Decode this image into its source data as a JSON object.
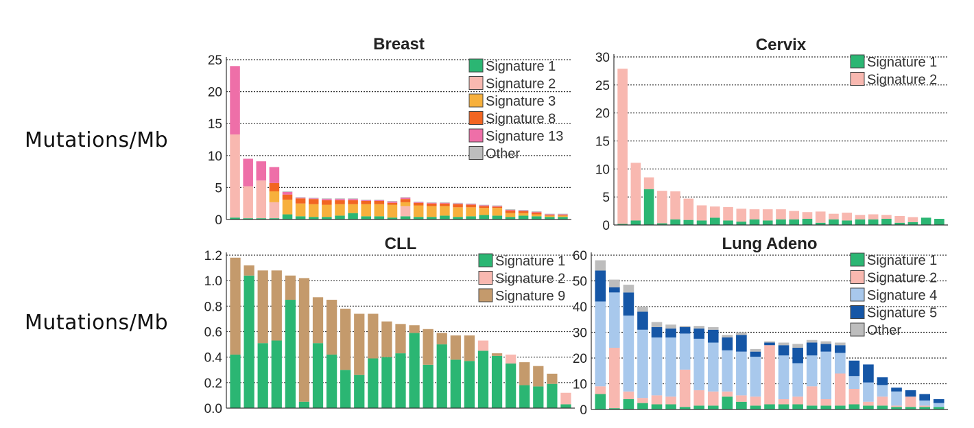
{
  "row_labels": [
    "Mutations/Mb",
    "Mutations/Mb"
  ],
  "colors": {
    "Signature 1": "#2bb673",
    "Signature 2": "#f8b8b0",
    "Signature 3": "#f7b03c",
    "Signature 8": "#f26522",
    "Signature 13": "#ee6fa8",
    "Signature 9": "#c49a6c",
    "Signature 4": "#a8c8ec",
    "Signature 5": "#1556a6",
    "Other": "#bdbdbd"
  },
  "chart_data": [
    {
      "type": "bar",
      "stacked": true,
      "title": "Breast",
      "ylabel": "Mutations/Mb",
      "ylim": [
        0,
        25
      ],
      "yticks": [
        "0",
        "5",
        "10",
        "15",
        "20",
        "25"
      ],
      "grid": true,
      "legend_position": "top-right",
      "legend": [
        "Signature 1",
        "Signature 2",
        "Signature 3",
        "Signature 8",
        "Signature 13",
        "Other"
      ],
      "series": [
        {
          "name": "Signature 1",
          "values": [
            0.3,
            0.2,
            0.2,
            0.2,
            0.8,
            0.5,
            0.4,
            0.4,
            0.6,
            1.0,
            0.5,
            0.5,
            0.3,
            0.5,
            0.4,
            0.4,
            0.6,
            0.4,
            0.5,
            0.7,
            0.6,
            0.4,
            0.6,
            0.5,
            0.4,
            0.4
          ]
        },
        {
          "name": "Signature 2",
          "values": [
            13.0,
            5.0,
            5.9,
            2.5,
            0,
            0,
            0,
            0,
            0,
            0,
            0,
            0,
            0,
            1.6,
            0,
            0,
            0,
            0,
            0,
            0,
            0,
            0,
            0,
            0,
            0,
            0
          ]
        },
        {
          "name": "Signature 3",
          "values": [
            0,
            0,
            0,
            1.7,
            2.3,
            2.0,
            2.0,
            1.9,
            1.8,
            1.4,
            1.9,
            1.9,
            2.0,
            0.6,
            1.8,
            1.7,
            1.5,
            1.5,
            1.4,
            1.1,
            1.2,
            0.6,
            0.4,
            0.3,
            0.2,
            0.2
          ]
        },
        {
          "name": "Signature 8",
          "values": [
            0,
            0,
            0,
            1.3,
            0.8,
            0.8,
            0.8,
            0.7,
            0.6,
            0.6,
            0.5,
            0.5,
            0.3,
            0.5,
            0.4,
            0.4,
            0.4,
            0.5,
            0.4,
            0.3,
            0.2,
            0.4,
            0.3,
            0.3,
            0.1,
            0.1
          ]
        },
        {
          "name": "Signature 13",
          "values": [
            10.7,
            4.3,
            3.0,
            2.5,
            0.4,
            0.1,
            0.1,
            0.2,
            0.2,
            0.2,
            0.1,
            0.1,
            0.2,
            0.2,
            0.1,
            0.1,
            0.1,
            0.1,
            0.1,
            0.1,
            0.1,
            0.1,
            0.1,
            0.1,
            0.1,
            0.1
          ]
        },
        {
          "name": "Other",
          "values": [
            0,
            0,
            0,
            0,
            0.1,
            0.1,
            0.1,
            0.1,
            0.1,
            0.1,
            0.1,
            0.1,
            0.1,
            0.1,
            0.1,
            0.1,
            0.1,
            0.1,
            0.1,
            0.1,
            0.1,
            0.1,
            0.1,
            0.1,
            0.1,
            0.1
          ]
        }
      ]
    },
    {
      "type": "bar",
      "stacked": true,
      "title": "Cervix",
      "ylim": [
        0,
        30
      ],
      "yticks": [
        "0",
        "5",
        "10",
        "15",
        "20",
        "25",
        "30"
      ],
      "grid": true,
      "legend_position": "top-right",
      "legend": [
        "Signature 1",
        "Signature 2"
      ],
      "series": [
        {
          "name": "Signature 1",
          "values": [
            0.2,
            0.8,
            6.4,
            0.3,
            1.0,
            0.9,
            0.8,
            1.3,
            0.8,
            0.6,
            1.0,
            0.8,
            1.0,
            1.0,
            1.1,
            0.4,
            1.0,
            0.8,
            1.0,
            1.0,
            1.1,
            0.4,
            0.5,
            1.3,
            1.1
          ]
        },
        {
          "name": "Signature 2",
          "values": [
            27.7,
            10.3,
            2.1,
            5.8,
            5.0,
            3.8,
            2.7,
            2.0,
            2.4,
            2.3,
            1.8,
            2.0,
            1.8,
            1.5,
            1.2,
            2.0,
            1.0,
            1.4,
            0.8,
            0.9,
            0.7,
            1.2,
            0.9,
            0.0,
            0.0
          ]
        }
      ]
    },
    {
      "type": "bar",
      "stacked": true,
      "title": "CLL",
      "ylabel": "Mutations/Mb",
      "ylim": [
        0,
        1.2
      ],
      "yticks": [
        "0.0",
        "0.2",
        "0.4",
        "0.6",
        "0.8",
        "1.0",
        "1.2"
      ],
      "grid": true,
      "legend_position": "top-right",
      "legend": [
        "Signature 1",
        "Signature 2",
        "Signature 9"
      ],
      "series": [
        {
          "name": "Signature 1",
          "values": [
            0.42,
            1.04,
            0.51,
            0.53,
            0.85,
            0.05,
            0.51,
            0.42,
            0.3,
            0.26,
            0.39,
            0.4,
            0.43,
            0.59,
            0.34,
            0.5,
            0.38,
            0.37,
            0.45,
            0.41,
            0.35,
            0.18,
            0.17,
            0.19,
            0.03
          ]
        },
        {
          "name": "Signature 2",
          "values": [
            0,
            0,
            0,
            0,
            0,
            0,
            0,
            0,
            0,
            0,
            0,
            0,
            0,
            0,
            0,
            0,
            0,
            0,
            0.08,
            0,
            0.07,
            0,
            0,
            0,
            0.09
          ]
        },
        {
          "name": "Signature 9",
          "values": [
            0.76,
            0.08,
            0.57,
            0.55,
            0.19,
            0.97,
            0.36,
            0.43,
            0.48,
            0.48,
            0.35,
            0.28,
            0.23,
            0.06,
            0.28,
            0.09,
            0.19,
            0.2,
            0,
            0.02,
            0,
            0.18,
            0.16,
            0.08,
            0
          ]
        }
      ]
    },
    {
      "type": "bar",
      "stacked": true,
      "title": "Lung Adeno",
      "ylim": [
        0,
        60
      ],
      "yticks": [
        "0",
        "10",
        "20",
        "30",
        "40",
        "50",
        "60"
      ],
      "grid": true,
      "legend_position": "top-right",
      "legend": [
        "Signature 1",
        "Signature 2",
        "Signature 4",
        "Signature 5",
        "Other"
      ],
      "series": [
        {
          "name": "Signature 1",
          "values": [
            6,
            0.5,
            4,
            2.5,
            2,
            2,
            1,
            1.5,
            1.5,
            5,
            3,
            1.5,
            2,
            2,
            2,
            1.5,
            1.5,
            1.5,
            2,
            1.5,
            1.5,
            1,
            1,
            1,
            1
          ]
        },
        {
          "name": "Signature 2",
          "values": [
            3,
            23.5,
            3,
            2,
            3.5,
            3,
            14.5,
            6,
            5.5,
            2,
            2.5,
            3.5,
            23,
            2,
            3,
            7.5,
            2.5,
            12.5,
            6,
            1.5,
            3.5,
            0.5,
            4,
            0.5,
            0
          ]
        },
        {
          "name": "Signature 4",
          "values": [
            33,
            21.5,
            29.5,
            26.5,
            22.5,
            23,
            14,
            20,
            19,
            16,
            17,
            15.5,
            0,
            17,
            13,
            12,
            18.5,
            8,
            5,
            7.5,
            4.5,
            5.5,
            0,
            2,
            1.5
          ]
        },
        {
          "name": "Signature 5",
          "values": [
            12,
            2,
            9,
            7,
            4,
            3.5,
            2.5,
            4,
            5,
            5,
            6.5,
            2,
            1,
            4,
            6,
            5,
            3,
            3,
            6,
            7,
            3,
            1.5,
            2.5,
            2.5,
            1.5
          ]
        },
        {
          "name": "Other",
          "values": [
            4,
            3,
            3,
            2,
            2,
            1.5,
            0.5,
            1,
            1,
            1,
            1,
            1,
            0.5,
            1,
            1.5,
            1,
            1,
            1,
            0,
            0,
            0,
            0,
            0,
            0,
            0
          ]
        }
      ]
    }
  ]
}
